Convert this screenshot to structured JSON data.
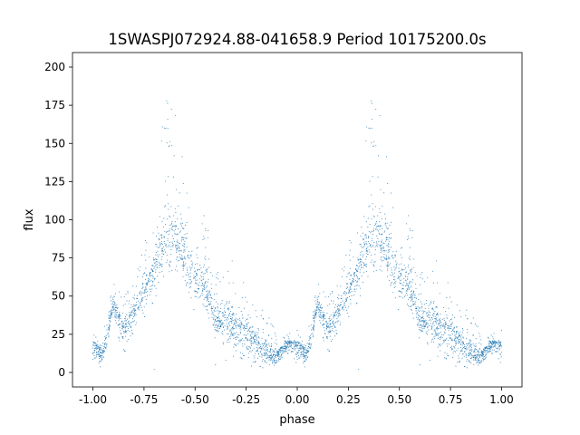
{
  "chart_data": {
    "type": "scatter",
    "title": "1SWASPJ072924.88-041658.9 Period 10175200.0s",
    "xlabel": "phase",
    "ylabel": "flux",
    "xlim": [
      -1.1,
      1.1
    ],
    "ylim": [
      -9.5,
      209.5
    ],
    "x_ticks": [
      "-1.00",
      "-0.75",
      "-0.50",
      "-0.25",
      "0.00",
      "0.25",
      "0.50",
      "0.75",
      "1.00"
    ],
    "y_ticks": [
      "0",
      "25",
      "50",
      "75",
      "100",
      "125",
      "150",
      "175",
      "200"
    ],
    "grid": false,
    "marker_color": "#1f77b4",
    "marker": "tiny dots",
    "phase_range": [
      -1.0,
      1.0
    ],
    "repeats_with_period": 1.0,
    "envelope": {
      "phase": [
        0.0,
        0.05,
        0.1,
        0.15,
        0.2,
        0.25,
        0.3,
        0.35,
        0.4,
        0.45,
        0.5,
        0.55,
        0.6,
        0.65,
        0.7,
        0.75,
        0.8,
        0.85,
        0.9,
        0.95,
        1.0
      ],
      "flux_median": [
        18,
        12,
        45,
        28,
        40,
        55,
        65,
        88,
        85,
        78,
        62,
        58,
        35,
        32,
        28,
        28,
        18,
        12,
        10,
        20,
        18
      ],
      "flux_upper": [
        30,
        25,
        65,
        50,
        65,
        85,
        100,
        185,
        200,
        125,
        100,
        105,
        75,
        70,
        75,
        55,
        45,
        40,
        25,
        25,
        30
      ],
      "flux_lower": [
        5,
        3,
        35,
        10,
        22,
        35,
        45,
        60,
        60,
        50,
        40,
        35,
        20,
        18,
        5,
        3,
        3,
        3,
        3,
        10,
        5
      ]
    },
    "outliers": [
      {
        "x": -0.95,
        "y": 10
      },
      {
        "x": -0.7,
        "y": 2
      },
      {
        "x": -0.85,
        "y": 15
      },
      {
        "x": 0.05,
        "y": 10
      },
      {
        "x": 0.3,
        "y": 2
      },
      {
        "x": 0.15,
        "y": 15
      },
      {
        "x": -0.35,
        "y": 8
      },
      {
        "x": 0.65,
        "y": 8
      },
      {
        "x": -0.4,
        "y": 5
      },
      {
        "x": 0.6,
        "y": 5
      }
    ]
  }
}
